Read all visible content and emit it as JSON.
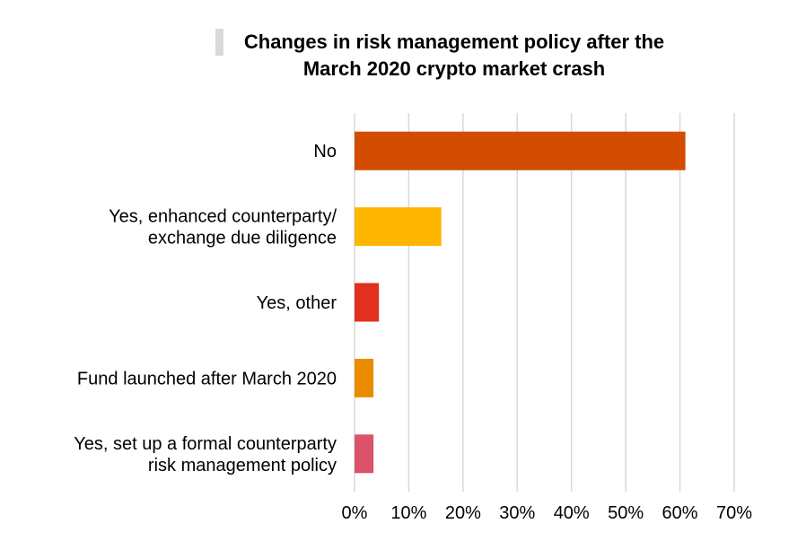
{
  "chart_data": {
    "type": "bar",
    "orientation": "horizontal",
    "title": "Changes in risk management policy after the March 2020 crypto market crash",
    "categories": [
      "No",
      "Yes, enhanced counterparty/ exchange due diligence",
      "Yes, other",
      "Fund launched after March 2020",
      "Yes, set up a formal counterparty risk management policy"
    ],
    "category_lines": [
      [
        "No"
      ],
      [
        "Yes, enhanced counterparty/",
        "exchange due diligence"
      ],
      [
        "Yes, other"
      ],
      [
        "Fund launched after March 2020"
      ],
      [
        "Yes, set up a formal counterparty",
        "risk management policy"
      ]
    ],
    "values": [
      61,
      16,
      4.5,
      3.5,
      3.5
    ],
    "unit": "%",
    "xlim": [
      0,
      70
    ],
    "xticks": [
      0,
      10,
      20,
      30,
      40,
      50,
      60,
      70
    ],
    "xtick_labels": [
      "0%",
      "10%",
      "20%",
      "30%",
      "40%",
      "50%",
      "60%",
      "70%"
    ],
    "xlabel": "",
    "ylabel": "",
    "grid": "vertical",
    "legend": "none",
    "colors": [
      "#d24d00",
      "#ffb600",
      "#e0301e",
      "#eb8c00",
      "#db536a"
    ]
  }
}
